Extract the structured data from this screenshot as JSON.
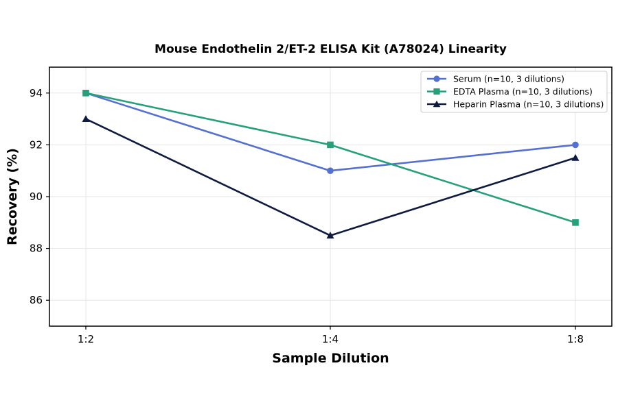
{
  "chart_data": {
    "type": "line",
    "title": "Mouse Endothelin 2/ET-2 ELISA Kit (A78024) Linearity",
    "xlabel": "Sample Dilution",
    "ylabel": "Recovery (%)",
    "categories": [
      "1:2",
      "1:4",
      "1:8"
    ],
    "ylim": [
      85,
      95
    ],
    "yticks": [
      86,
      88,
      90,
      92,
      94
    ],
    "grid": true,
    "legend_position": "top-right",
    "series": [
      {
        "name": "Serum (n=10, 3 dilutions)",
        "values": [
          94,
          91,
          92
        ],
        "color": "#5470d0",
        "marker": "circle"
      },
      {
        "name": "EDTA Plasma (n=10, 3 dilutions)",
        "values": [
          94,
          92,
          89
        ],
        "color": "#26a07a",
        "marker": "square"
      },
      {
        "name": "Heparin Plasma (n=10, 3 dilutions)",
        "values": [
          93,
          88.5,
          91.5
        ],
        "color": "#0f1a40",
        "marker": "triangle"
      }
    ]
  }
}
